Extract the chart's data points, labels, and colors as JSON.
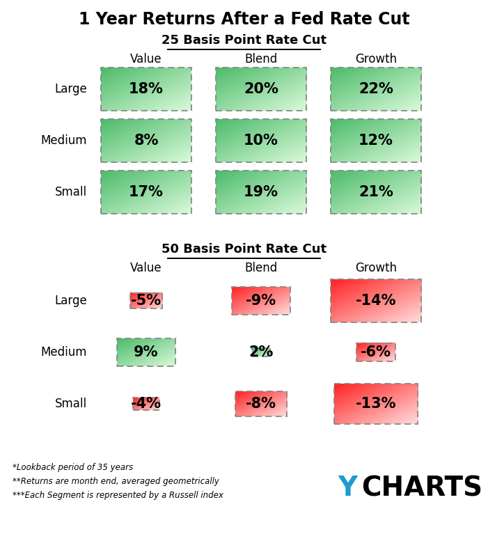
{
  "title": "1 Year Returns After a Fed Rate Cut",
  "section1_title": "25 Basis Point Rate Cut",
  "section2_title": "50 Basis Point Rate Cut",
  "col_headers": [
    "Value",
    "Blend",
    "Growth"
  ],
  "row_headers": [
    "Large",
    "Medium",
    "Small"
  ],
  "data_25bp": [
    [
      18,
      20,
      22
    ],
    [
      8,
      10,
      12
    ],
    [
      17,
      19,
      21
    ]
  ],
  "data_50bp": [
    [
      -5,
      -9,
      -14
    ],
    [
      9,
      2,
      -6
    ],
    [
      -4,
      -8,
      -13
    ]
  ],
  "footnotes": [
    "*Lookback period of 35 years",
    "**Returns are month end, averaged geometrically",
    "***Each Segment is represented by a Russell index"
  ],
  "ychart_color": "#1B9BD1",
  "positive_color_strong": "#4CBB6A",
  "positive_color_light": "#DAFADA",
  "negative_color_strong": "#FF2222",
  "negative_color_light": "#FFDDDD",
  "bg_color": "#FFFFFF",
  "title_fontsize": 17,
  "section_fontsize": 13,
  "header_fontsize": 12,
  "row_fontsize": 12,
  "value_fontsize": 15
}
